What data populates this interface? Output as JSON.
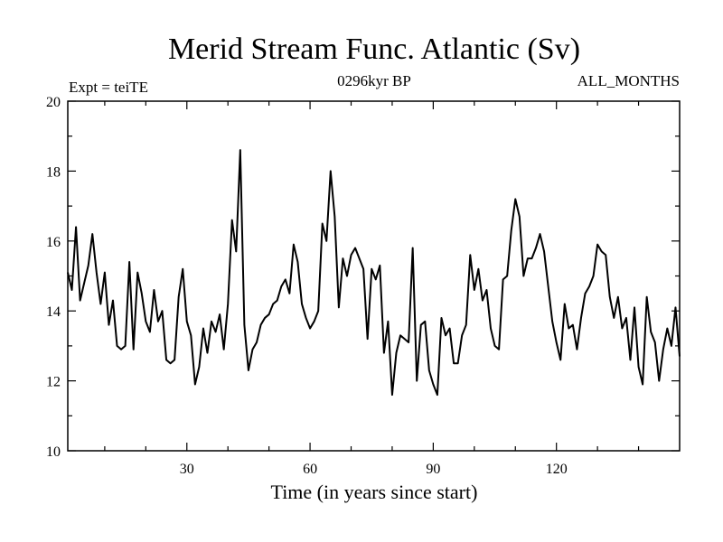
{
  "chart_data": {
    "type": "line",
    "title": "Merid Stream Func. Atlantic (Sv)",
    "subtitle_left": "Expt = teiTE",
    "subtitle_center": "0296kyr BP",
    "subtitle_right": "ALL_MONTHS",
    "xlabel": "Time (in years since start)",
    "ylabel": "",
    "xlim": [
      1,
      150
    ],
    "ylim": [
      10,
      20
    ],
    "xticks_major": [
      30,
      60,
      90,
      120
    ],
    "xticks_minor": [
      10,
      20,
      40,
      50,
      70,
      80,
      100,
      110,
      130,
      140
    ],
    "yticks_major": [
      10,
      12,
      14,
      16,
      18,
      20
    ],
    "yticks_minor": [
      11,
      13,
      15,
      17,
      19
    ],
    "x_start": 1,
    "x_step": 1,
    "series": [
      {
        "name": "Merid Stream Func. Atlantic",
        "values": [
          15.1,
          14.6,
          16.4,
          14.3,
          14.8,
          15.3,
          16.2,
          15.1,
          14.2,
          15.1,
          13.6,
          14.3,
          13.0,
          12.9,
          13.0,
          15.4,
          12.9,
          15.1,
          14.5,
          13.7,
          13.4,
          14.6,
          13.7,
          14.0,
          12.6,
          12.5,
          12.6,
          14.4,
          15.2,
          13.7,
          13.3,
          11.9,
          12.4,
          13.5,
          12.8,
          13.7,
          13.4,
          13.9,
          12.9,
          14.2,
          16.6,
          15.7,
          18.6,
          13.6,
          12.3,
          12.9,
          13.1,
          13.6,
          13.8,
          13.9,
          14.2,
          14.3,
          14.7,
          14.9,
          14.5,
          15.9,
          15.4,
          14.2,
          13.8,
          13.5,
          13.7,
          14.0,
          16.5,
          16.0,
          18.0,
          16.7,
          14.1,
          15.5,
          15.0,
          15.6,
          15.8,
          15.5,
          15.2,
          13.2,
          15.2,
          14.9,
          15.3,
          12.8,
          13.7,
          11.6,
          12.8,
          13.3,
          13.2,
          13.1,
          15.8,
          12.0,
          13.6,
          13.7,
          12.3,
          11.9,
          11.6,
          13.8,
          13.3,
          13.5,
          12.5,
          12.5,
          13.3,
          13.6,
          15.6,
          14.6,
          15.2,
          14.3,
          14.6,
          13.5,
          13.0,
          12.9,
          14.9,
          15.0,
          16.3,
          17.2,
          16.7,
          15.0,
          15.5,
          15.5,
          15.8,
          16.2,
          15.7,
          14.7,
          13.7,
          13.1,
          12.6,
          14.2,
          13.5,
          13.6,
          12.9,
          13.8,
          14.5,
          14.7,
          15.0,
          15.9,
          15.7,
          15.6,
          14.4,
          13.8,
          14.4,
          13.5,
          13.8,
          12.6,
          14.1,
          12.4,
          11.9,
          14.4,
          13.4,
          13.1,
          12.0,
          12.9,
          13.5,
          13.0,
          14.1,
          12.7
        ]
      }
    ]
  }
}
